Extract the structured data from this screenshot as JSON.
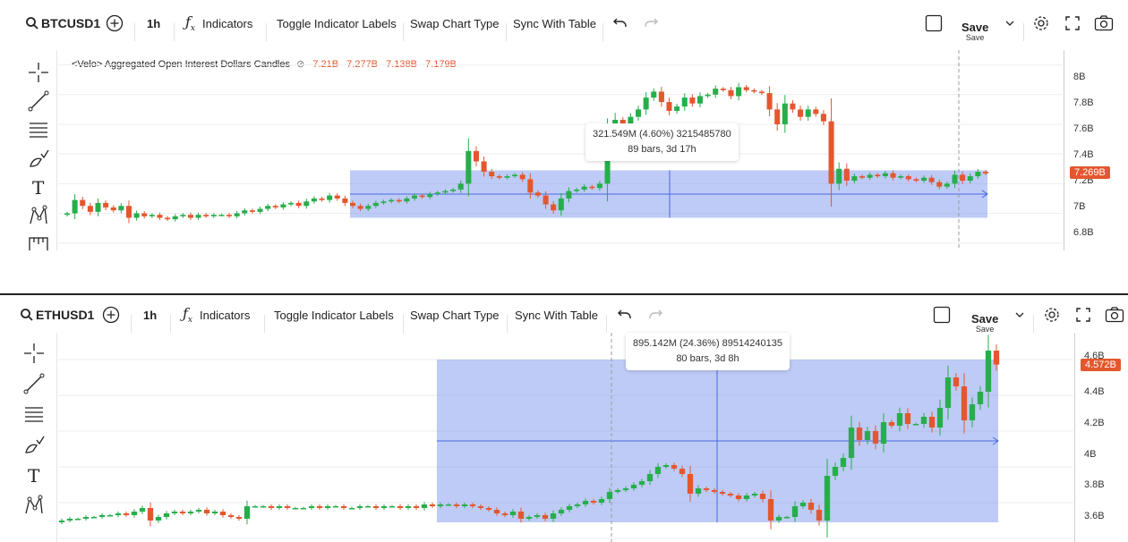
{
  "colors": {
    "up": "#27ae4b",
    "down": "#e4572e",
    "measure": "#4a68e0",
    "badge": "#e4572e"
  },
  "top": {
    "symbol": "BTCUSD1",
    "interval": "1h",
    "toolbar": {
      "indicators": "Indicators",
      "toggle_labels": "Toggle Indicator Labels",
      "swap_chart": "Swap Chart Type",
      "sync_table": "Sync With Table",
      "save": "Save",
      "save_sub": "Save"
    },
    "legend": {
      "title": "<Velo> Aggregated Open Interest Dollars Candles",
      "o": "7.21B",
      "h": "7.277B",
      "l": "7.138B",
      "c": "7.179B"
    },
    "price_axis": [
      "8B",
      "7.8B",
      "7.6B",
      "7.4B",
      "7.2B",
      "7B",
      "6.8B"
    ],
    "last_price": "7.269B",
    "measure": {
      "line1": "321.549M (4.60%) 3215485780",
      "line2": "89 bars, 3d 17h"
    }
  },
  "bottom": {
    "symbol": "ETHUSD1",
    "interval": "1h",
    "toolbar": {
      "indicators": "Indicators",
      "toggle_labels": "Toggle Indicator Labels",
      "swap_chart": "Swap Chart Type",
      "sync_table": "Sync With Table",
      "save": "Save",
      "save_sub": "Save"
    },
    "price_axis": [
      "4.6B",
      "4.4B",
      "4.2B",
      "4B",
      "3.8B",
      "3.6B"
    ],
    "last_price": "4.572B",
    "measure": {
      "line1": "895.142M (24.36%) 89514240135",
      "line2": "80 bars, 3d 8h"
    }
  },
  "chart_data": [
    {
      "type": "candlestick",
      "title": "<Velo> Aggregated Open Interest Dollars Candles",
      "ylim": [
        6.75,
        8.1
      ],
      "yticks": [
        8.0,
        7.8,
        7.6,
        7.4,
        7.2,
        7.0,
        6.8
      ],
      "closes": [
        7.0,
        7.09,
        7.05,
        7.01,
        7.07,
        7.04,
        7.02,
        7.05,
        6.97,
        7.0,
        6.98,
        6.99,
        6.97,
        6.96,
        6.98,
        6.99,
        6.97,
        6.99,
        6.98,
        6.99,
        6.99,
        6.98,
        7.0,
        7.02,
        7.01,
        7.03,
        7.05,
        7.04,
        7.06,
        7.07,
        7.05,
        7.08,
        7.1,
        7.09,
        7.12,
        7.1,
        7.07,
        7.05,
        7.03,
        7.05,
        7.07,
        7.08,
        7.09,
        7.08,
        7.1,
        7.12,
        7.11,
        7.13,
        7.14,
        7.15,
        7.16,
        7.2,
        7.42,
        7.35,
        7.28,
        7.25,
        7.24,
        7.25,
        7.26,
        7.23,
        7.14,
        7.12,
        7.06,
        7.02,
        7.1,
        7.15,
        7.16,
        7.18,
        7.17,
        7.2,
        7.52,
        7.63,
        7.6,
        7.65,
        7.7,
        7.78,
        7.82,
        7.75,
        7.69,
        7.72,
        7.78,
        7.74,
        7.79,
        7.8,
        7.84,
        7.83,
        7.79,
        7.85,
        7.83,
        7.82,
        7.81,
        7.7,
        7.6,
        7.74,
        7.7,
        7.65,
        7.7,
        7.67,
        7.62,
        7.2,
        7.3,
        7.22,
        7.25,
        7.24,
        7.26,
        7.25,
        7.27,
        7.24,
        7.25,
        7.23,
        7.22,
        7.24,
        7.21,
        7.18,
        7.2,
        7.26,
        7.22,
        7.25,
        7.28,
        7.269
      ]
    },
    {
      "type": "candlestick",
      "ylim": [
        3.58,
        4.75
      ],
      "yticks": [
        4.6,
        4.4,
        4.2,
        4.0,
        3.8,
        3.6
      ],
      "closes": [
        3.7,
        3.71,
        3.71,
        3.72,
        3.72,
        3.73,
        3.73,
        3.74,
        3.73,
        3.75,
        3.77,
        3.7,
        3.72,
        3.74,
        3.75,
        3.74,
        3.75,
        3.76,
        3.74,
        3.75,
        3.73,
        3.72,
        3.71,
        3.78,
        3.78,
        3.78,
        3.77,
        3.78,
        3.77,
        3.77,
        3.77,
        3.78,
        3.77,
        3.78,
        3.78,
        3.77,
        3.77,
        3.78,
        3.78,
        3.77,
        3.78,
        3.78,
        3.77,
        3.78,
        3.77,
        3.79,
        3.78,
        3.79,
        3.79,
        3.78,
        3.79,
        3.78,
        3.77,
        3.76,
        3.74,
        3.73,
        3.75,
        3.71,
        3.72,
        3.73,
        3.71,
        3.74,
        3.76,
        3.78,
        3.79,
        3.81,
        3.8,
        3.82,
        3.86,
        3.87,
        3.88,
        3.9,
        3.92,
        3.96,
        4.0,
        4.01,
        3.99,
        3.96,
        3.85,
        3.88,
        3.87,
        3.86,
        3.85,
        3.84,
        3.82,
        3.84,
        3.85,
        3.82,
        3.7,
        3.72,
        3.72,
        3.78,
        3.8,
        3.76,
        3.7,
        3.95,
        4.0,
        4.05,
        4.22,
        4.15,
        4.2,
        4.13,
        4.25,
        4.23,
        4.3,
        4.24,
        4.24,
        4.28,
        4.22,
        4.33,
        4.5,
        4.45,
        4.26,
        4.35,
        4.42,
        4.65,
        4.572
      ]
    }
  ]
}
